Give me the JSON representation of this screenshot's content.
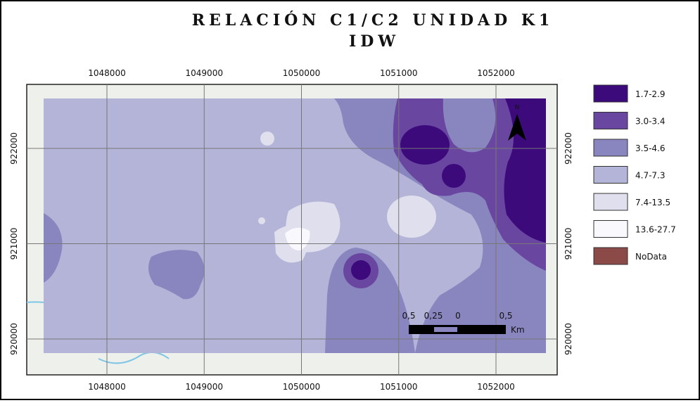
{
  "title": {
    "line1": "RELACIÓN C1/C2 UNIDAD K1",
    "line2": "IDW"
  },
  "grid": {
    "x_ticks": [
      1048000,
      1049000,
      1050000,
      1051000,
      1052000
    ],
    "y_ticks": [
      922000,
      921000,
      920000
    ]
  },
  "legend": [
    {
      "label": "1.7-2.9",
      "color": "#3d0a7c"
    },
    {
      "label": "3.0-3.4",
      "color": "#6947a1"
    },
    {
      "label": "3.5-4.6",
      "color": "#8985bf"
    },
    {
      "label": "4.7-7.3",
      "color": "#b4b3d8"
    },
    {
      "label": "7.4-13.5",
      "color": "#e0dfee"
    },
    {
      "label": "13.6-27.7",
      "color": "#f9f8fd"
    },
    {
      "label": "NoData",
      "color": "#8b4a48"
    }
  ],
  "north_arrow": "N",
  "scale_bar": {
    "labels": [
      "0,5",
      "0,25",
      "0",
      "0,5"
    ],
    "unit": "Km"
  }
}
